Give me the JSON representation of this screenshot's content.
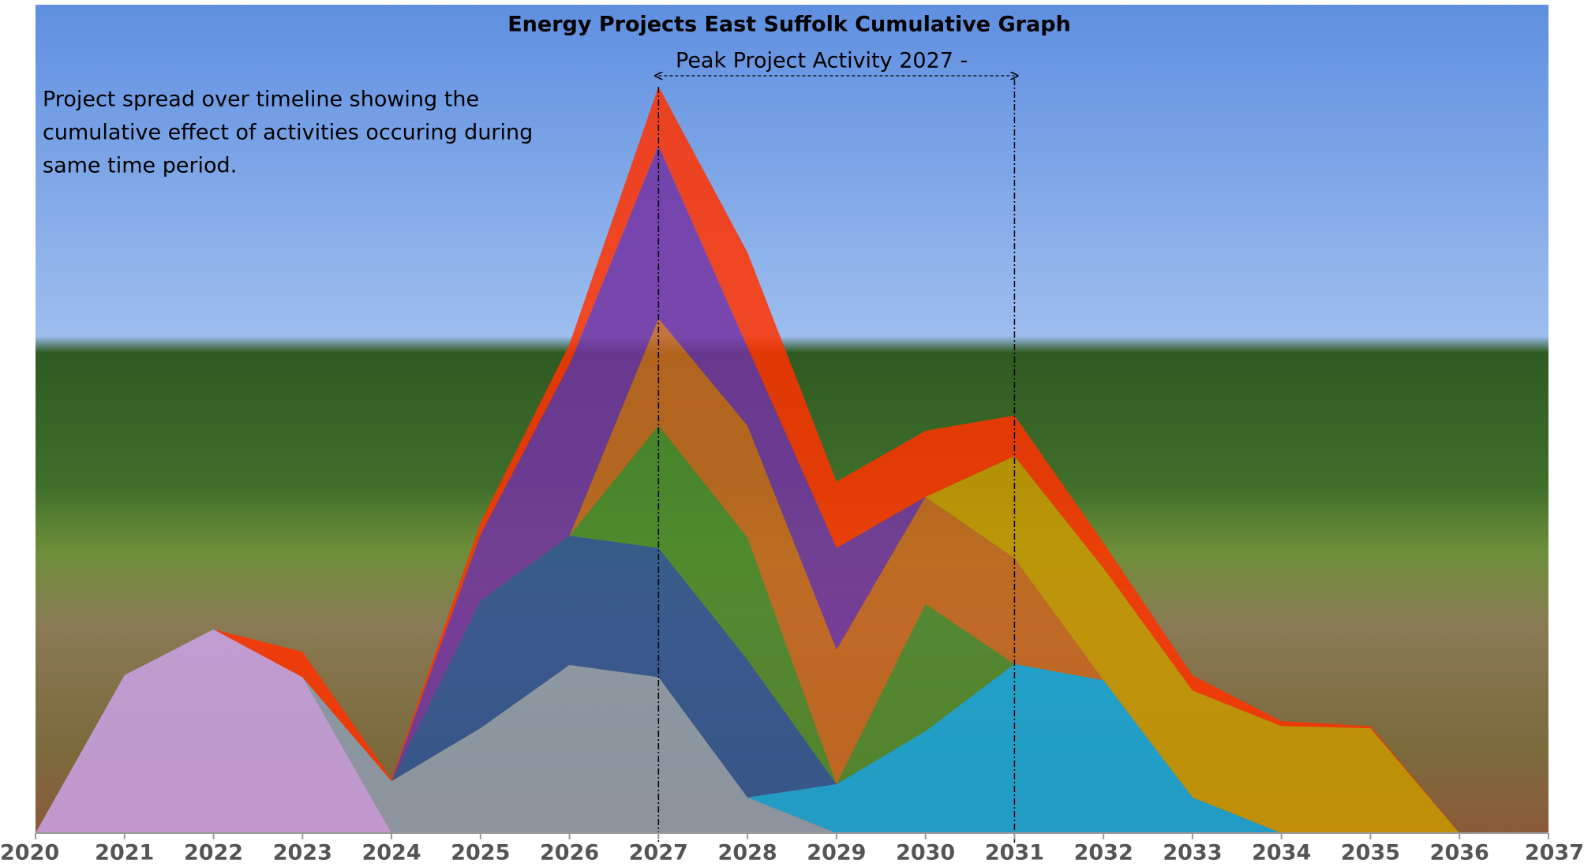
{
  "chart_data": {
    "type": "stacked-area",
    "title": "Energy Projects East Suffolk Cumulative Graph",
    "annotation": "Peak Project Activity   2027 -",
    "description": [
      "Project spread over timeline showing the",
      "cumulative effect of activities occuring during",
      "same time period."
    ],
    "markers_x": [
      2027,
      2031
    ],
    "x": [
      2020,
      2021,
      2022,
      2023,
      2024,
      2025,
      2026,
      2027,
      2028,
      2029,
      2030,
      2031,
      2032,
      2033,
      2034,
      2035,
      2036,
      2037
    ],
    "xlim": [
      2020,
      2037
    ],
    "xticks": [
      2020,
      2021,
      2022,
      2023,
      2024,
      2025,
      2026,
      2027,
      2028,
      2029,
      2030,
      2031,
      2032,
      2033,
      2034,
      2035,
      2036,
      2037
    ],
    "ylim": [
      0,
      80
    ],
    "opacity": 0.85,
    "series": [
      {
        "color": "#caa2e8",
        "values": [
          0,
          15.5,
          20,
          15.3,
          0,
          0,
          0,
          0,
          0,
          0,
          0,
          0,
          0,
          0,
          0,
          0,
          0,
          0
        ]
      },
      {
        "color": "#8e9db0",
        "values": [
          0,
          0,
          0,
          0,
          5.1,
          10.3,
          16.5,
          15.3,
          3.5,
          0,
          0,
          0,
          0,
          0,
          0,
          0,
          0,
          0
        ]
      },
      {
        "color": "#12a7de",
        "values": [
          0,
          0,
          0,
          0,
          0,
          0,
          0,
          0,
          0,
          4.8,
          10,
          16.6,
          15,
          3.5,
          0,
          0,
          0,
          0
        ]
      },
      {
        "color": "#2d5496",
        "values": [
          0,
          0,
          0,
          0,
          0,
          12.5,
          12.7,
          12.7,
          13.5,
          0,
          0,
          0,
          0,
          0,
          0,
          0,
          0,
          0
        ]
      },
      {
        "color": "#4b8a2c",
        "values": [
          0,
          0,
          0,
          0,
          0,
          0,
          0,
          12,
          12,
          0,
          12.5,
          0,
          0,
          0,
          0,
          0,
          0,
          0
        ]
      },
      {
        "color": "#c9661f",
        "values": [
          0,
          0,
          0,
          0,
          0,
          0,
          0,
          10.5,
          11,
          13.2,
          10.5,
          10.4,
          0,
          0,
          0,
          0,
          0,
          0
        ]
      },
      {
        "color": "#c99800",
        "values": [
          0,
          0,
          0,
          0,
          0,
          0,
          0,
          0,
          0,
          0,
          0,
          10,
          11,
          10.5,
          10.5,
          10.3,
          0,
          0
        ]
      },
      {
        "color": "#7232a2",
        "values": [
          0,
          0,
          0,
          0,
          0,
          6.5,
          16.8,
          17,
          7.7,
          10,
          0,
          0,
          0,
          0,
          0,
          0,
          0,
          0
        ]
      },
      {
        "color": "#ff3300",
        "values": [
          0,
          0,
          0,
          2.5,
          0.2,
          1.2,
          2,
          5.8,
          9.3,
          6.5,
          6.5,
          4,
          2.5,
          1.5,
          0.5,
          0.2,
          0,
          0
        ]
      }
    ]
  }
}
